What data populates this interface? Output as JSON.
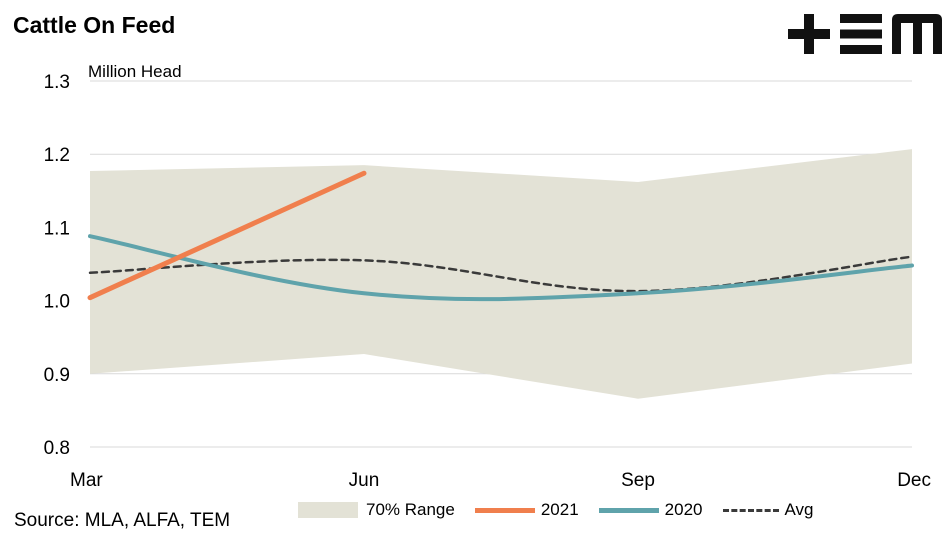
{
  "title": "Cattle On Feed",
  "source": "Source: MLA, ALFA, TEM",
  "colors": {
    "range": "#e3e2d6",
    "s2021": "#f07f4d",
    "s2020": "#5fa3ab",
    "avg": "#3a3a3a",
    "grid": "#d9d9d9"
  },
  "chart_data": {
    "type": "line",
    "ylabel": "Million Head",
    "ylim": [
      0.8,
      1.3
    ],
    "yticks": [
      "0.8",
      "0.9",
      "1.0",
      "1.1",
      "1.2",
      "1.3"
    ],
    "categories": [
      "Mar",
      "Jun",
      "Sep",
      "Dec"
    ],
    "range_band": {
      "name": "70% Range",
      "upper": [
        1.177,
        1.185,
        1.162,
        1.207
      ],
      "lower": [
        0.9,
        0.927,
        0.866,
        0.914
      ]
    },
    "series": [
      {
        "name": "2021",
        "values": [
          1.004,
          1.174,
          null,
          null
        ]
      },
      {
        "name": "2020",
        "values": [
          1.088,
          1.01,
          1.01,
          1.048
        ]
      },
      {
        "name": "Avg",
        "values": [
          1.038,
          1.055,
          1.013,
          1.06
        ]
      }
    ],
    "legend_position": "bottom",
    "grid": true
  }
}
